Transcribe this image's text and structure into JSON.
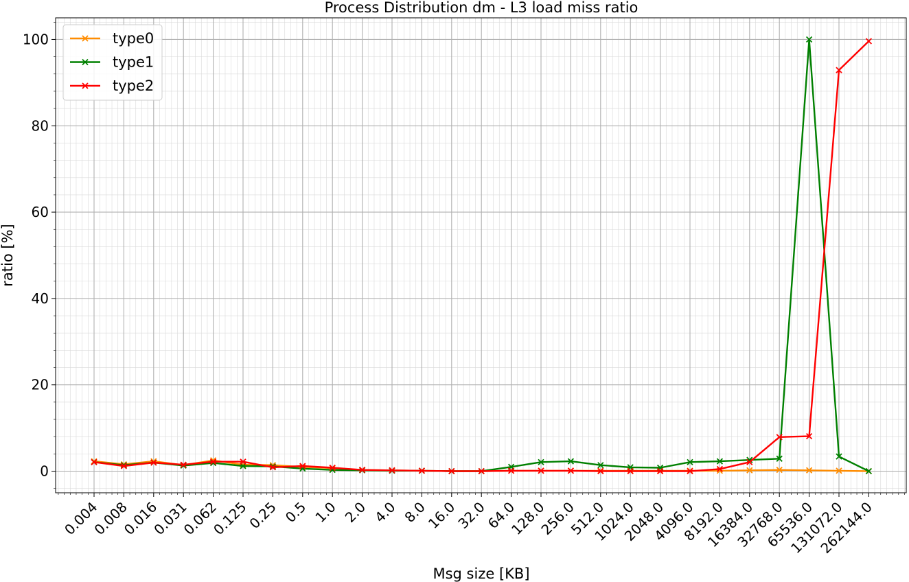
{
  "chart_data": {
    "type": "line",
    "title": "Process Distribution dm - L3 load miss ratio",
    "xlabel": "Msg size [KB]",
    "ylabel": "ratio [%]",
    "categories": [
      "0.004",
      "0.008",
      "0.016",
      "0.031",
      "0.062",
      "0.125",
      "0.25",
      "0.5",
      "1.0",
      "2.0",
      "4.0",
      "8.0",
      "16.0",
      "32.0",
      "64.0",
      "128.0",
      "256.0",
      "512.0",
      "1024.0",
      "2048.0",
      "4096.0",
      "8192.0",
      "16384.0",
      "32768.0",
      "65536.0",
      "131072.0",
      "262144.0"
    ],
    "ylim": [
      -5,
      105
    ],
    "yticks": [
      "0",
      "20",
      "40",
      "60",
      "80",
      "100"
    ],
    "grid": true,
    "legend_position": "upper-left",
    "series": [
      {
        "name": "type0",
        "color": "#ff8c00",
        "values": [
          2.3,
          1.6,
          2.3,
          1.4,
          2.5,
          1.5,
          1.4,
          1.0,
          0.7,
          0.3,
          0.2,
          0.1,
          0.0,
          0.0,
          0.1,
          0.1,
          0.1,
          0.1,
          0.1,
          0.1,
          0.1,
          0.1,
          0.2,
          0.3,
          0.2,
          0.1,
          0.0
        ]
      },
      {
        "name": "type1",
        "color": "#008000",
        "values": [
          2.1,
          1.4,
          2.0,
          1.3,
          1.9,
          1.2,
          1.1,
          0.6,
          0.3,
          0.2,
          0.1,
          0.1,
          0.0,
          0.0,
          1.0,
          2.1,
          2.3,
          1.4,
          0.9,
          0.8,
          2.1,
          2.3,
          2.6,
          2.9,
          100.0,
          3.4,
          0.0
        ]
      },
      {
        "name": "type2",
        "color": "#ff0000",
        "values": [
          2.1,
          1.2,
          2.0,
          1.5,
          2.2,
          2.2,
          0.9,
          1.2,
          0.8,
          0.3,
          0.2,
          0.1,
          0.0,
          0.0,
          0.1,
          0.1,
          0.1,
          0.0,
          0.0,
          0.0,
          0.0,
          0.5,
          2.1,
          7.9,
          8.1,
          92.9,
          99.6
        ]
      }
    ]
  }
}
